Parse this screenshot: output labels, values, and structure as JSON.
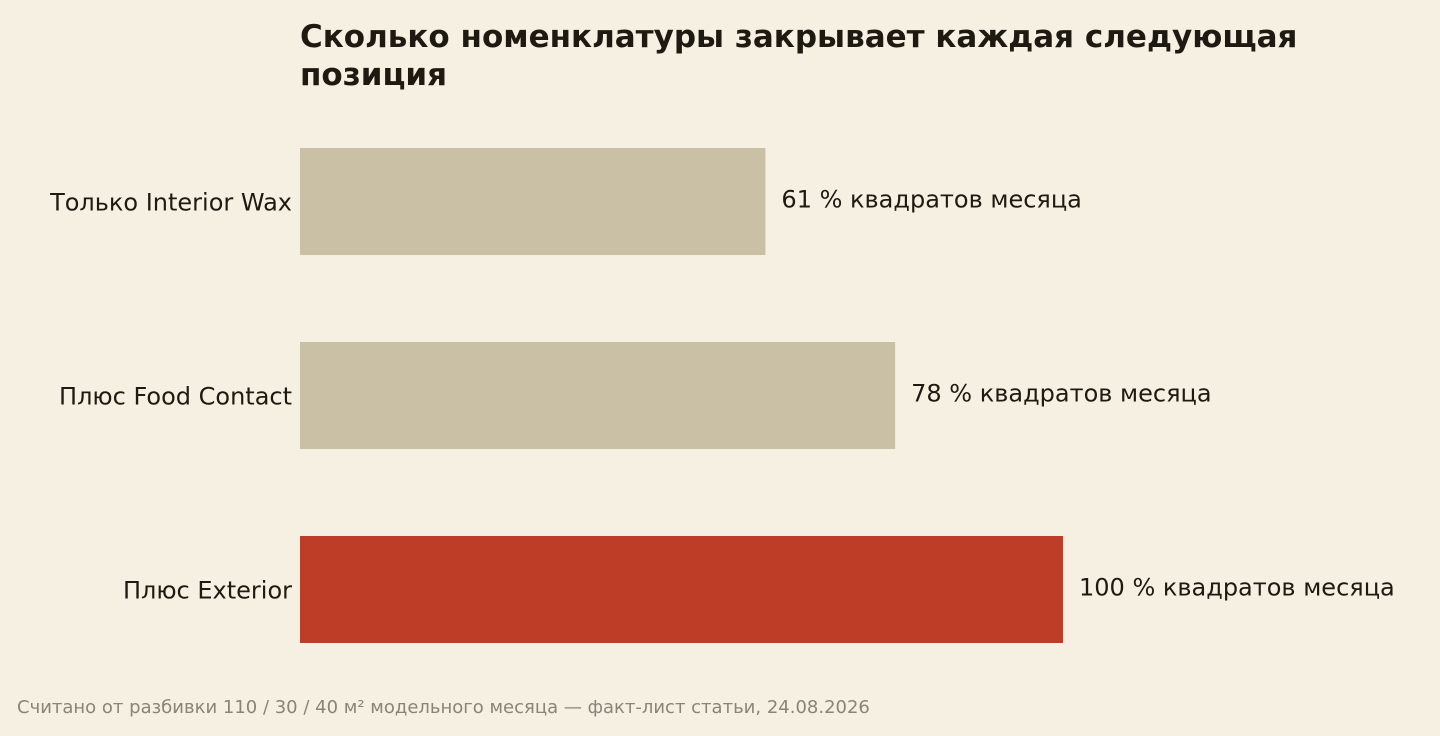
{
  "chart_data": {
    "type": "bar",
    "orientation": "horizontal",
    "title": "Сколько номенклатуры закрывает каждая следующая позиция",
    "categories": [
      "Только Interior Wax",
      "Плюс Food Contact",
      "Плюс Exterior"
    ],
    "values": [
      61,
      78,
      100
    ],
    "data_labels": [
      "61 % квадратов месяца",
      "78 % квадратов месяца",
      "100 % квадратов месяца"
    ],
    "xlim": [
      0,
      100
    ],
    "unit": "%",
    "grid": false,
    "legend": "none",
    "bar_colors": [
      "#c9c0a6",
      "#c9c0a6",
      "#bd3d27"
    ]
  },
  "footnote": "Считано от разбивки 110 / 30 / 40 м² модельного месяца — факт-лист статьи, 24.08.2026"
}
